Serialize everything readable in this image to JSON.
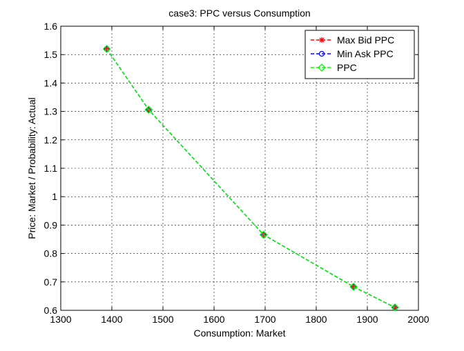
{
  "chart_data": {
    "type": "line",
    "title": "case3: PPC versus Consumption",
    "x_label": "Consumption: Market",
    "y_label": "Price: Market / Probability: Actual",
    "x": [
      1390,
      1472,
      1697,
      1873,
      1954
    ],
    "series": [
      {
        "name": "Max Bid PPC",
        "color": "#ff0000",
        "marker": "asterisk",
        "values": [
          1.52,
          1.306,
          0.866,
          0.683,
          0.61
        ]
      },
      {
        "name": "Min Ask PPC",
        "color": "#0000ff",
        "marker": "circle",
        "values": [
          1.52,
          1.306,
          0.866,
          0.683,
          0.61
        ]
      },
      {
        "name": "PPC",
        "color": "#00ff00",
        "marker": "diamond",
        "values": [
          1.52,
          1.306,
          0.866,
          0.683,
          0.61
        ]
      }
    ],
    "xlim": [
      1300,
      2000
    ],
    "ylim": [
      0.6,
      1.6
    ],
    "xticks": [
      1300,
      1400,
      1500,
      1600,
      1700,
      1800,
      1900,
      2000
    ],
    "yticks": [
      0.6,
      0.7,
      0.8,
      0.9,
      1,
      1.1,
      1.2,
      1.3,
      1.4,
      1.5,
      1.6
    ],
    "grid": true,
    "line_style": "dashed",
    "legend_position": "top-right"
  }
}
